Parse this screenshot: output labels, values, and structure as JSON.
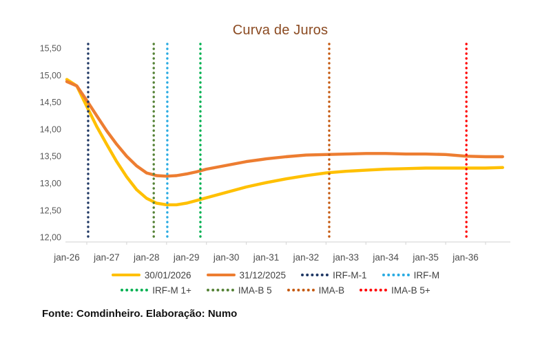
{
  "title": "Curva de Juros",
  "footer": "Fonte: Comdinheiro. Elaboração: Numo",
  "colors": {
    "title_text": "#8B4A21",
    "axis_line": "#d9d9d9",
    "y_tick_text": "#595959",
    "x_tick_text": "#4d4d4d",
    "legend_text": "#3f3f3f"
  },
  "chart_data": {
    "type": "line",
    "title": "Curva de Juros",
    "grid": "off",
    "legend_position": "bottom",
    "x_axis": {
      "tick_labels": [
        "jan-26",
        "jan-27",
        "jan-28",
        "jan-29",
        "jan-30",
        "jan-31",
        "jan-32",
        "jan-33",
        "jan-34",
        "jan-35",
        "jan-36"
      ],
      "tick_positions_years": [
        0,
        1,
        2,
        3,
        4,
        5,
        6,
        7,
        8,
        9,
        10
      ]
    },
    "y_axis": {
      "range": [
        12.0,
        15.5
      ],
      "ticks": [
        15.5,
        15.0,
        14.5,
        14.0,
        13.5,
        13.0,
        12.5,
        12.0
      ],
      "tick_labels": [
        "15,50",
        "15,00",
        "14,50",
        "14,00",
        "13,50",
        "13,00",
        "12,50",
        "12,00"
      ]
    },
    "x_years": [
      0,
      0.25,
      0.5,
      0.75,
      1,
      1.25,
      1.5,
      1.75,
      2,
      2.25,
      2.5,
      2.75,
      3,
      3.25,
      3.5,
      4,
      4.5,
      5,
      5.5,
      6,
      6.5,
      7,
      7.5,
      8,
      8.5,
      9,
      9.5,
      10,
      10.5,
      10.93
    ],
    "series": [
      {
        "name": "30/01/2026",
        "color": "#FFC000",
        "style": "solid",
        "values": [
          14.92,
          14.8,
          14.42,
          14.05,
          13.72,
          13.4,
          13.12,
          12.88,
          12.72,
          12.63,
          12.6,
          12.6,
          12.63,
          12.68,
          12.73,
          12.83,
          12.93,
          13.01,
          13.08,
          13.14,
          13.19,
          13.22,
          13.24,
          13.26,
          13.27,
          13.28,
          13.28,
          13.28,
          13.28,
          13.29
        ]
      },
      {
        "name": "31/12/2025",
        "color": "#ED7D31",
        "style": "solid",
        "values": [
          14.88,
          14.8,
          14.53,
          14.25,
          13.97,
          13.72,
          13.5,
          13.32,
          13.19,
          13.14,
          13.13,
          13.14,
          13.17,
          13.21,
          13.26,
          13.33,
          13.4,
          13.45,
          13.49,
          13.52,
          13.53,
          13.54,
          13.55,
          13.55,
          13.54,
          13.54,
          13.53,
          13.5,
          13.49,
          13.49
        ]
      }
    ],
    "vertical_markers": [
      {
        "label": "IRF-M-1",
        "color": "#1F3864",
        "x_years": 0.535
      },
      {
        "label": "IMA-B 5",
        "color": "#548235",
        "x_years": 2.18
      },
      {
        "label": "IRF-M",
        "color": "#29ABE2",
        "x_years": 2.52
      },
      {
        "label": "IRF-M 1+",
        "color": "#00B050",
        "x_years": 3.35
      },
      {
        "label": "IMA-B",
        "color": "#C55A11",
        "x_years": 6.58
      },
      {
        "label": "IMA-B 5+",
        "color": "#FF0000",
        "x_years": 10.02
      }
    ],
    "legend_rows": [
      [
        "30/01/2026",
        "31/12/2025",
        "IRF-M-1",
        "IRF-M"
      ],
      [
        "IRF-M 1+",
        "IMA-B 5",
        "IMA-B",
        "IMA-B 5+"
      ]
    ]
  }
}
